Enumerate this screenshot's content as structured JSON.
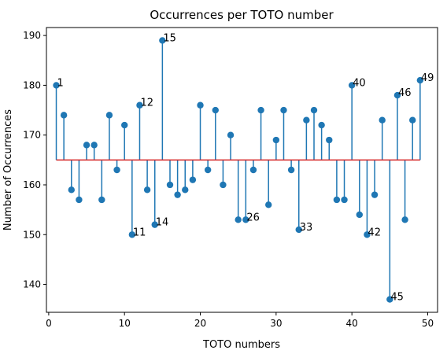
{
  "chart_data": {
    "type": "stem",
    "title": "Occurrences per TOTO number",
    "xlabel": "TOTO numbers",
    "ylabel": "Number of Occurrences",
    "xlim": [
      -0.3,
      51.3
    ],
    "ylim": [
      134.4,
      191.6
    ],
    "xticks": [
      0,
      10,
      20,
      30,
      40,
      50
    ],
    "yticks": [
      140,
      150,
      160,
      170,
      180,
      190
    ],
    "baseline": 165,
    "colors": {
      "stem": "#1f77b4",
      "baseline": "#d62728"
    },
    "x": [
      1,
      2,
      3,
      4,
      5,
      6,
      7,
      8,
      9,
      10,
      11,
      12,
      13,
      14,
      15,
      16,
      17,
      18,
      19,
      20,
      21,
      22,
      23,
      24,
      25,
      26,
      27,
      28,
      29,
      30,
      31,
      32,
      33,
      34,
      35,
      36,
      37,
      38,
      39,
      40,
      41,
      42,
      43,
      44,
      45,
      46,
      47,
      48,
      49
    ],
    "values": [
      180,
      174,
      159,
      157,
      168,
      168,
      157,
      174,
      163,
      172,
      150,
      176,
      159,
      152,
      189,
      160,
      158,
      159,
      161,
      176,
      163,
      175,
      160,
      170,
      153,
      153,
      163,
      175,
      156,
      169,
      175,
      163,
      151,
      173,
      175,
      172,
      169,
      157,
      157,
      180,
      154,
      150,
      158,
      173,
      137,
      178,
      153,
      173,
      181
    ],
    "annotations": [
      {
        "x": 1,
        "y": 180,
        "text": "1"
      },
      {
        "x": 11,
        "y": 150,
        "text": "11"
      },
      {
        "x": 12,
        "y": 176,
        "text": "12"
      },
      {
        "x": 14,
        "y": 152,
        "text": "14"
      },
      {
        "x": 15,
        "y": 189,
        "text": "15"
      },
      {
        "x": 26,
        "y": 153,
        "text": "26"
      },
      {
        "x": 33,
        "y": 151,
        "text": "33"
      },
      {
        "x": 40,
        "y": 180,
        "text": "40"
      },
      {
        "x": 42,
        "y": 150,
        "text": "42"
      },
      {
        "x": 45,
        "y": 137,
        "text": "45"
      },
      {
        "x": 46,
        "y": 178,
        "text": "46"
      },
      {
        "x": 49,
        "y": 181,
        "text": "49"
      }
    ]
  }
}
